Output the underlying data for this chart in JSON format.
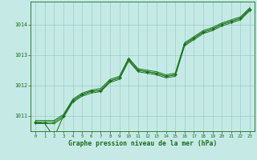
{
  "x": [
    0,
    1,
    2,
    3,
    4,
    5,
    6,
    7,
    8,
    9,
    10,
    11,
    12,
    13,
    14,
    15,
    16,
    17,
    18,
    19,
    20,
    21,
    22,
    23
  ],
  "line_main": [
    1010.8,
    1010.8,
    1010.8,
    1011.0,
    1011.5,
    1011.7,
    1011.8,
    1011.85,
    1012.15,
    1012.25,
    1012.85,
    1012.5,
    1012.45,
    1012.4,
    1012.3,
    1012.35,
    1013.35,
    1013.55,
    1013.75,
    1013.85,
    1014.0,
    1014.1,
    1014.2,
    1014.5
  ],
  "line_upper": [
    1010.85,
    1010.85,
    1010.85,
    1011.05,
    1011.55,
    1011.75,
    1011.85,
    1011.9,
    1012.2,
    1012.3,
    1012.9,
    1012.55,
    1012.5,
    1012.45,
    1012.35,
    1012.4,
    1013.4,
    1013.6,
    1013.8,
    1013.9,
    1014.05,
    1014.15,
    1014.25,
    1014.55
  ],
  "line_lower": [
    1010.75,
    1010.75,
    1010.75,
    1010.95,
    1011.45,
    1011.65,
    1011.75,
    1011.8,
    1012.1,
    1012.2,
    1012.8,
    1012.45,
    1012.4,
    1012.35,
    1012.25,
    1012.3,
    1013.3,
    1013.5,
    1013.7,
    1013.8,
    1013.95,
    1014.05,
    1014.15,
    1014.45
  ],
  "line_marker": [
    1010.8,
    1010.75,
    1010.3,
    1011.0,
    1011.5,
    1011.7,
    1011.82,
    1011.82,
    1012.15,
    1012.25,
    1012.85,
    1012.5,
    1012.45,
    1012.4,
    1012.3,
    1012.35,
    1013.35,
    1013.55,
    1013.75,
    1013.85,
    1014.0,
    1014.1,
    1014.2,
    1014.5
  ],
  "bg_color": "#c5eae6",
  "grid_color": "#9eccc8",
  "line_dark": "#1a6b1a",
  "line_light": "#2d9e2d",
  "xlabel": "Graphe pression niveau de la mer (hPa)",
  "ylim": [
    1010.5,
    1014.75
  ],
  "xlim": [
    -0.5,
    23.5
  ],
  "yticks": [
    1011,
    1012,
    1013,
    1014
  ],
  "xticks": [
    0,
    1,
    2,
    3,
    4,
    5,
    6,
    7,
    8,
    9,
    10,
    11,
    12,
    13,
    14,
    15,
    16,
    17,
    18,
    19,
    20,
    21,
    22,
    23
  ]
}
